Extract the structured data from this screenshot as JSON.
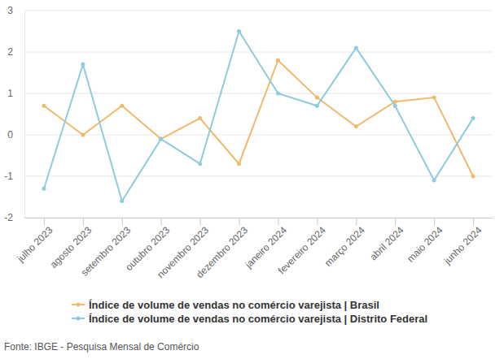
{
  "chart_data": {
    "type": "line",
    "categories": [
      "julho 2023",
      "agosto 2023",
      "setembro 2023",
      "outubro 2023",
      "novembro 2023",
      "dezembro 2023",
      "janeiro 2024",
      "fevereiro 2024",
      "março 2024",
      "abril 2024",
      "maio 2024",
      "junho 2024"
    ],
    "series": [
      {
        "name": "Índice de volume de vendas no comércio varejista | Brasil",
        "color": "#f0b96b",
        "marker": "circle",
        "values": [
          0.7,
          0.0,
          0.7,
          -0.1,
          0.4,
          -0.7,
          1.8,
          0.9,
          0.2,
          0.8,
          0.9,
          -1.0
        ]
      },
      {
        "name": "Índice de volume de vendas no comércio varejista | Distrito Federal",
        "color": "#8ecbdc",
        "marker": "circle",
        "values": [
          -1.3,
          1.7,
          -1.6,
          -0.1,
          -0.7,
          2.5,
          1.0,
          0.7,
          2.1,
          0.7,
          -1.1,
          0.4
        ]
      }
    ],
    "ylim": [
      -2,
      3
    ],
    "yticks": [
      -2,
      -1,
      0,
      1,
      2,
      3
    ],
    "grid": true,
    "legend": "bottom-left",
    "source": "Fonte: IBGE - Pesquisa Mensal de Comércio"
  }
}
